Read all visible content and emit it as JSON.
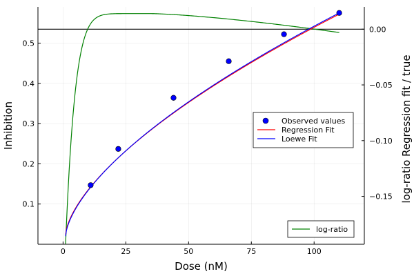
{
  "chart_data": {
    "type": "line",
    "xlabel": "Dose (nM)",
    "ylabel_left": "Inhibition",
    "ylabel_right": "log-ratio Regression fit / true",
    "xlim": [
      -10,
      120
    ],
    "ylim_left": [
      0.0,
      0.59
    ],
    "ylim_right": [
      -0.193,
      0.02
    ],
    "x_ticks": [
      0,
      25,
      50,
      75,
      100
    ],
    "y_left_ticks": [
      0.1,
      0.2,
      0.3,
      0.4,
      0.5
    ],
    "y_left_tick_labels": [
      "0.1",
      "0.2",
      "0.3",
      "0.4",
      "0.5"
    ],
    "y_right_ticks": [
      0.0,
      -0.05,
      -0.1,
      -0.15
    ],
    "y_right_tick_labels": [
      "0.00",
      "−0.05",
      "−0.10",
      "−0.15"
    ],
    "grid": true,
    "observed": {
      "name": "Observed values",
      "color": "#0000ff",
      "x": [
        11,
        22,
        44,
        66,
        88,
        110
      ],
      "y": [
        0.147,
        0.237,
        0.364,
        0.455,
        0.522,
        0.575
      ]
    },
    "regression_fit": {
      "name": "Regression Fit",
      "color": "#ff0000",
      "params": {
        "a": 0.1442,
        "b": 0.5898,
        "offset": 0.0
      },
      "x_range": [
        1,
        110
      ]
    },
    "loewe_fit": {
      "name": "Loewe Fit",
      "color": "#0000ff",
      "params": {
        "a": 0.14,
        "b": 0.6,
        "offset": 0.0
      },
      "x_range": [
        1,
        110
      ]
    },
    "log_ratio": {
      "name": "log-ratio",
      "color": "#008000",
      "axis": "right",
      "x_range": [
        1,
        110
      ]
    },
    "reference_line": {
      "axis": "right",
      "value": 0.0,
      "color": "#000000"
    },
    "legend_main_location": "center-right",
    "legend_right_location": "bottom-right"
  }
}
